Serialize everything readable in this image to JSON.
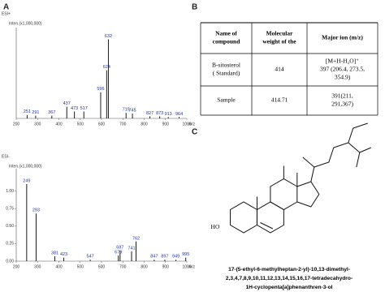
{
  "panel_labels": [
    "A",
    "B",
    "C"
  ],
  "chart_data": [
    {
      "type": "spectrum",
      "label": "ESI+",
      "y_label": "Inten.(x1,000,000)",
      "x_label": "m/z",
      "xlim": [
        200,
        1000
      ],
      "xticks": [
        200,
        300,
        400,
        500,
        600,
        700,
        800,
        900,
        1000
      ],
      "ylim": [
        0,
        1.25
      ],
      "color": "#000000",
      "label_color": "#2233aa",
      "x": [
        251,
        291,
        367,
        437,
        473,
        517,
        596,
        624,
        632,
        715,
        745,
        827,
        873,
        913,
        964
      ],
      "values": [
        0.05,
        0.04,
        0.04,
        0.17,
        0.1,
        0.1,
        0.38,
        0.7,
        1.15,
        0.08,
        0.07,
        0.03,
        0.03,
        0.02,
        0.02
      ]
    },
    {
      "type": "spectrum",
      "label": "ESI-",
      "y_label": "Inten.(x1,000,000)",
      "x_label": "m/z",
      "xlim": [
        200,
        1000
      ],
      "xticks": [
        200,
        300,
        400,
        500,
        600,
        700,
        800,
        900,
        1000
      ],
      "ylim": [
        0,
        1.25
      ],
      "yticks": [
        {
          "value": 0,
          "label": "0.00"
        },
        {
          "value": 0.25,
          "label": "0.25"
        },
        {
          "value": 0.5,
          "label": "0.50"
        },
        {
          "value": 0.75,
          "label": "0.75"
        },
        {
          "value": 1,
          "label": "1.00"
        }
      ],
      "color": "#000000",
      "label_color": "#2233aa",
      "x": [
        249,
        293,
        381,
        423,
        547,
        679,
        687,
        741,
        762,
        847,
        897,
        949,
        995
      ],
      "values": [
        1.1,
        0.68,
        0.07,
        0.05,
        0.02,
        0.08,
        0.15,
        0.14,
        0.28,
        0.02,
        0.02,
        0.02,
        0.05
      ]
    }
  ],
  "table": {
    "header": [
      [
        "Name of",
        "compound"
      ],
      [
        "Molecular",
        "weight of the"
      ],
      [
        "Major ion (m/z)"
      ]
    ],
    "rows": [
      [
        [
          "B-sitosterol",
          "( Standard)"
        ],
        [
          "414"
        ],
        [
          "[M+H-H₂O]⁺",
          "397 (206.4, 273.5,",
          "354.9)"
        ]
      ],
      [
        [
          "Sample"
        ],
        [
          "414.71"
        ],
        [
          "391(211,",
          "291,367)"
        ]
      ]
    ]
  },
  "structure": {
    "hydroxyl": "HO",
    "name_lines": [
      "17-(5-ethyl-6-methylheptan-2-yl)-10,13-dimethyl-",
      "2,3,4,7,8,9,10,11,12,13,14,15,16,17-tetradecahydro-",
      "1H-cyclopenta[a]phenanthren-3-ol"
    ]
  }
}
